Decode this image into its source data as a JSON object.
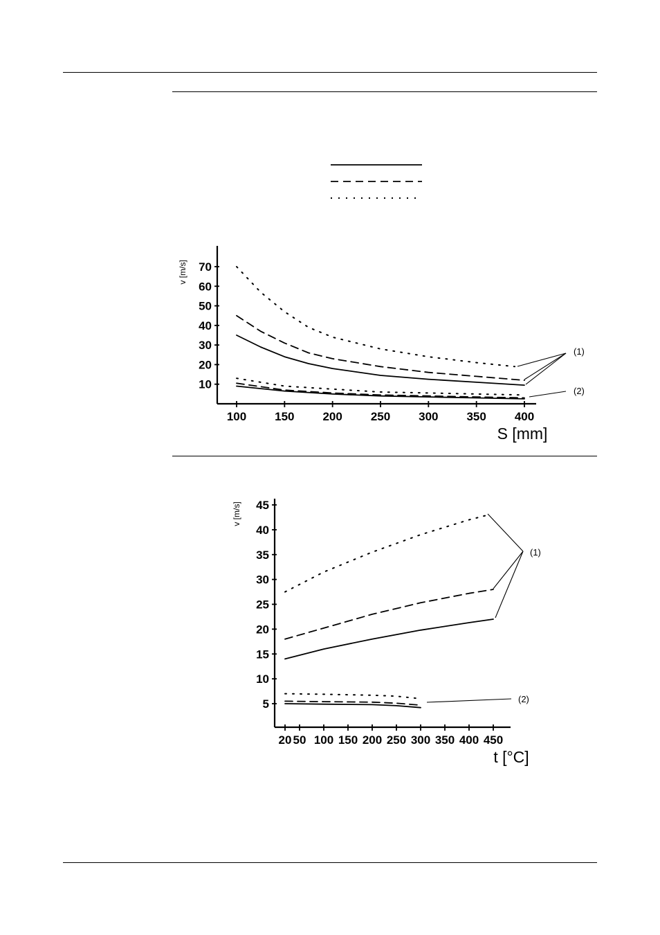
{
  "legend": {
    "styles": [
      "solid",
      "dashed",
      "dotted"
    ]
  },
  "chart_data": [
    {
      "type": "line",
      "title": "",
      "xlabel": "S [mm]",
      "ylabel": "v [m/s]",
      "x_ticks": [
        100,
        150,
        200,
        250,
        300,
        350,
        400
      ],
      "y_ticks": [
        10,
        20,
        30,
        40,
        50,
        60,
        70
      ],
      "xlim": [
        85,
        420
      ],
      "ylim": [
        0,
        81
      ],
      "grid": false,
      "callouts": [
        "(1)",
        "(2)"
      ],
      "series": [
        {
          "style": "dotted",
          "group": "(1)",
          "x": [
            100,
            125,
            150,
            175,
            200,
            250,
            300,
            350,
            390
          ],
          "y": [
            70,
            57,
            47,
            39,
            34,
            28,
            24,
            21,
            19
          ]
        },
        {
          "style": "dashed",
          "group": "(1)",
          "x": [
            100,
            125,
            150,
            175,
            200,
            250,
            300,
            350,
            400
          ],
          "y": [
            45,
            37,
            31,
            26,
            23,
            19,
            16,
            14,
            12
          ]
        },
        {
          "style": "solid",
          "group": "(1)",
          "x": [
            100,
            125,
            150,
            175,
            200,
            250,
            300,
            350,
            400
          ],
          "y": [
            35,
            29,
            24,
            20.5,
            18,
            14.5,
            12.5,
            11,
            9.5
          ]
        },
        {
          "style": "dotted",
          "group": "(2)",
          "x": [
            100,
            150,
            200,
            250,
            300,
            350,
            400
          ],
          "y": [
            13,
            9,
            7.5,
            6,
            5.5,
            5,
            4.5
          ]
        },
        {
          "style": "dashed",
          "group": "(2)",
          "x": [
            100,
            150,
            200,
            250,
            300,
            350,
            400
          ],
          "y": [
            10.5,
            7,
            5.5,
            4.5,
            4,
            3.5,
            3
          ]
        },
        {
          "style": "solid",
          "group": "(2)",
          "x": [
            100,
            150,
            200,
            250,
            300,
            350,
            400
          ],
          "y": [
            9,
            6.5,
            5,
            4,
            3.5,
            3,
            2.5
          ]
        }
      ]
    },
    {
      "type": "line",
      "title": "",
      "xlabel": "t [°C]",
      "ylabel": "v [m/s]",
      "x_ticks": [
        20,
        50,
        100,
        150,
        200,
        250,
        300,
        350,
        400,
        450
      ],
      "y_ticks": [
        5,
        10,
        15,
        20,
        25,
        30,
        35,
        40,
        45
      ],
      "xlim": [
        0,
        480
      ],
      "ylim": [
        0,
        45
      ],
      "grid": false,
      "callouts": [
        "(1)",
        "(2)"
      ],
      "series": [
        {
          "style": "dotted",
          "group": "(1)",
          "x": [
            20,
            100,
            200,
            300,
            400,
            440
          ],
          "y": [
            27.5,
            31.5,
            35.5,
            39,
            42,
            43
          ]
        },
        {
          "style": "dashed",
          "group": "(1)",
          "x": [
            20,
            100,
            200,
            300,
            400,
            450
          ],
          "y": [
            18,
            20.2,
            23,
            25.3,
            27.2,
            28
          ]
        },
        {
          "style": "solid",
          "group": "(1)",
          "x": [
            20,
            100,
            200,
            300,
            400,
            450
          ],
          "y": [
            14,
            16,
            18,
            19.8,
            21.3,
            22
          ]
        },
        {
          "style": "dotted",
          "group": "(2)",
          "x": [
            20,
            100,
            200,
            250,
            300
          ],
          "y": [
            7,
            6.9,
            6.7,
            6.5,
            6
          ]
        },
        {
          "style": "dashed",
          "group": "(2)",
          "x": [
            20,
            100,
            200,
            250,
            300
          ],
          "y": [
            5.5,
            5.4,
            5.3,
            5.1,
            4.7
          ]
        },
        {
          "style": "solid",
          "group": "(2)",
          "x": [
            20,
            100,
            200,
            250,
            300
          ],
          "y": [
            5,
            4.9,
            4.8,
            4.6,
            4.2
          ]
        }
      ]
    }
  ]
}
